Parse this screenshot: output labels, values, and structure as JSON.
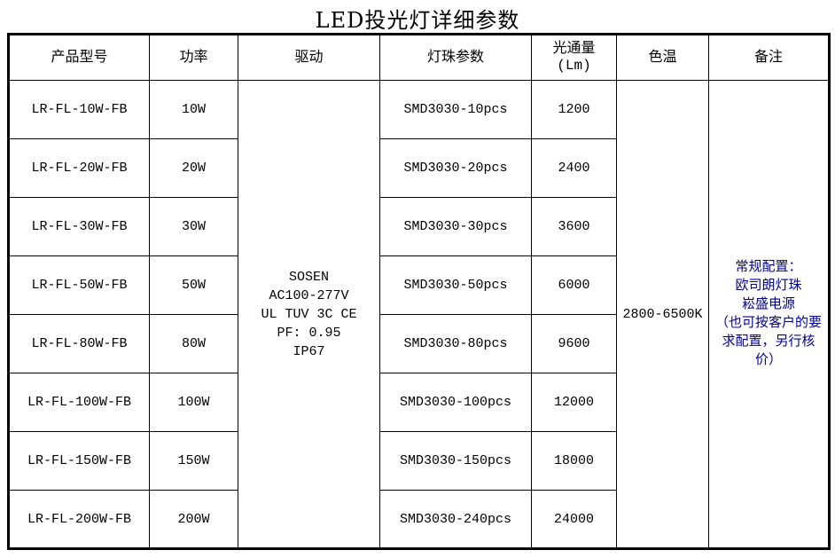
{
  "title": "LED投光灯详细参数",
  "accent_color": "#000099",
  "table": {
    "headers": {
      "model": "产品型号",
      "power": "功率",
      "driver": "驱动",
      "leds": "灯珠参数",
      "lumens": "光通量\n(Lm)",
      "cct": "色温",
      "remark": "备注"
    },
    "rows": [
      {
        "model": "LR-FL-10W-FB",
        "power": "10W",
        "leds": "SMD3030-10pcs",
        "lumens": "1200"
      },
      {
        "model": "LR-FL-20W-FB",
        "power": "20W",
        "leds": "SMD3030-20pcs",
        "lumens": "2400"
      },
      {
        "model": "LR-FL-30W-FB",
        "power": "30W",
        "leds": "SMD3030-30pcs",
        "lumens": "3600"
      },
      {
        "model": "LR-FL-50W-FB",
        "power": "50W",
        "leds": "SMD3030-50pcs",
        "lumens": "6000"
      },
      {
        "model": "LR-FL-80W-FB",
        "power": "80W",
        "leds": "SMD3030-80pcs",
        "lumens": "9600"
      },
      {
        "model": "LR-FL-100W-FB",
        "power": "100W",
        "leds": "SMD3030-100pcs",
        "lumens": "12000"
      },
      {
        "model": "LR-FL-150W-FB",
        "power": "150W",
        "leds": "SMD3030-150pcs",
        "lumens": "18000"
      },
      {
        "model": "LR-FL-200W-FB",
        "power": "200W",
        "leds": "SMD3030-240pcs",
        "lumens": "24000"
      }
    ],
    "driver": "SOSEN\nAC100-277V\nUL TUV 3C CE\nPF: 0.95\nIP67",
    "cct": "2800-6500K",
    "remark": "常规配置：\n欧司朗灯珠\n崧盛电源\n（也可按客户的要\n求配置，另行核\n价）"
  }
}
